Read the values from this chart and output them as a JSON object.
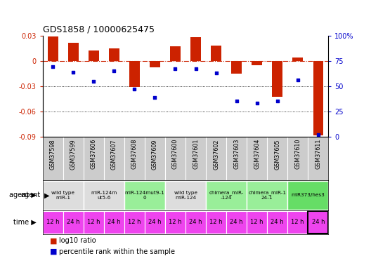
{
  "title": "GDS1858 / 10000625475",
  "samples": [
    "GSM37598",
    "GSM37599",
    "GSM37606",
    "GSM37607",
    "GSM37608",
    "GSM37609",
    "GSM37600",
    "GSM37601",
    "GSM37602",
    "GSM37603",
    "GSM37604",
    "GSM37605",
    "GSM37610",
    "GSM37611"
  ],
  "log10_ratio": [
    0.029,
    0.021,
    0.012,
    0.015,
    -0.031,
    -0.008,
    0.017,
    0.028,
    0.018,
    -0.015,
    -0.005,
    -0.043,
    0.004,
    -0.088
  ],
  "percentile_rank": [
    69,
    64,
    55,
    65,
    47,
    39,
    67,
    67,
    63,
    35,
    33,
    35,
    56,
    2
  ],
  "ylim_left": [
    -0.09,
    0.03
  ],
  "ylim_right": [
    0,
    100
  ],
  "yticks_left": [
    -0.09,
    -0.06,
    -0.03,
    0.0,
    0.03
  ],
  "yticks_right": [
    0,
    25,
    50,
    75,
    100
  ],
  "ytick_labels_left": [
    "-0.09",
    "-0.06",
    "-0.03",
    "0",
    "0.03"
  ],
  "ytick_labels_right": [
    "0",
    "25",
    "50",
    "75",
    "100%"
  ],
  "bar_color": "#cc2200",
  "dot_color": "#0000cc",
  "dashed_line_color": "#cc2200",
  "agent_groups": [
    {
      "label": "wild type\nmiR-1",
      "cols": [
        0,
        1
      ],
      "color": "#dddddd"
    },
    {
      "label": "miR-124m\nut5-6",
      "cols": [
        2,
        3
      ],
      "color": "#dddddd"
    },
    {
      "label": "miR-124mut9-1\n0",
      "cols": [
        4,
        5
      ],
      "color": "#99ee99"
    },
    {
      "label": "wild type\nmiR-124",
      "cols": [
        6,
        7
      ],
      "color": "#dddddd"
    },
    {
      "label": "chimera_miR-\n-124",
      "cols": [
        8,
        9
      ],
      "color": "#99ee99"
    },
    {
      "label": "chimera_miR-1\n24-1",
      "cols": [
        10,
        11
      ],
      "color": "#99ee99"
    },
    {
      "label": "miR373/hes3",
      "cols": [
        12,
        13
      ],
      "color": "#66dd66"
    }
  ],
  "time_labels": [
    "12 h",
    "24 h",
    "12 h",
    "24 h",
    "12 h",
    "24 h",
    "12 h",
    "24 h",
    "12 h",
    "24 h",
    "12 h",
    "24 h",
    "12 h",
    "24 h"
  ],
  "time_color": "#ee44ee",
  "sample_box_color": "#cccccc",
  "background_color": "#ffffff",
  "legend_ratio_label": "log10 ratio",
  "legend_pct_label": "percentile rank within the sample"
}
